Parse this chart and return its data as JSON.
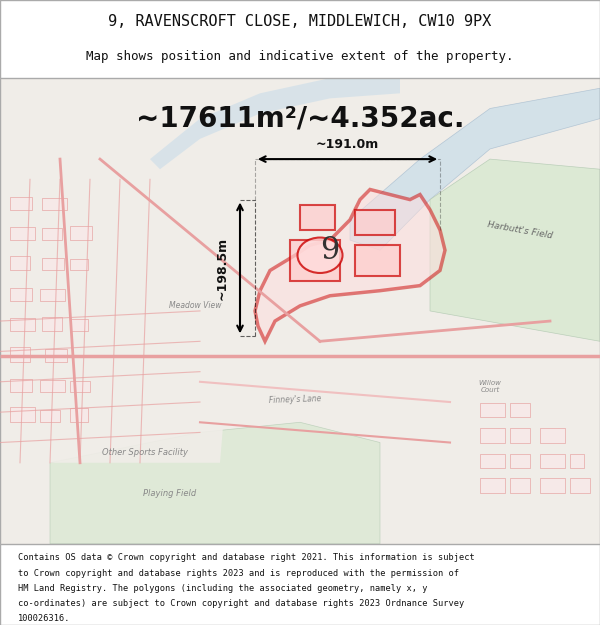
{
  "title_line1": "9, RAVENSCROFT CLOSE, MIDDLEWICH, CW10 9PX",
  "title_line2": "Map shows position and indicative extent of the property.",
  "area_text": "~17611m²/~4.352ac.",
  "width_text": "~191.0m",
  "height_text": "~198.5m",
  "plot_number": "9",
  "footer_lines": [
    "Contains OS data © Crown copyright and database right 2021. This information is subject",
    "to Crown copyright and database rights 2023 and is reproduced with the permission of",
    "HM Land Registry. The polygons (including the associated geometry, namely x, y",
    "co-ordinates) are subject to Crown copyright and database rights 2023 Ordnance Survey",
    "100026316."
  ],
  "bg_map_color": "#f0ede8",
  "border_color": "#cccccc",
  "title_bg": "#ffffff",
  "footer_bg": "#ffffff",
  "property_color": "#cc0000",
  "water_color": "#c8dce8",
  "green_area": "#d8e8d0",
  "road_color": "#e8a0a0"
}
